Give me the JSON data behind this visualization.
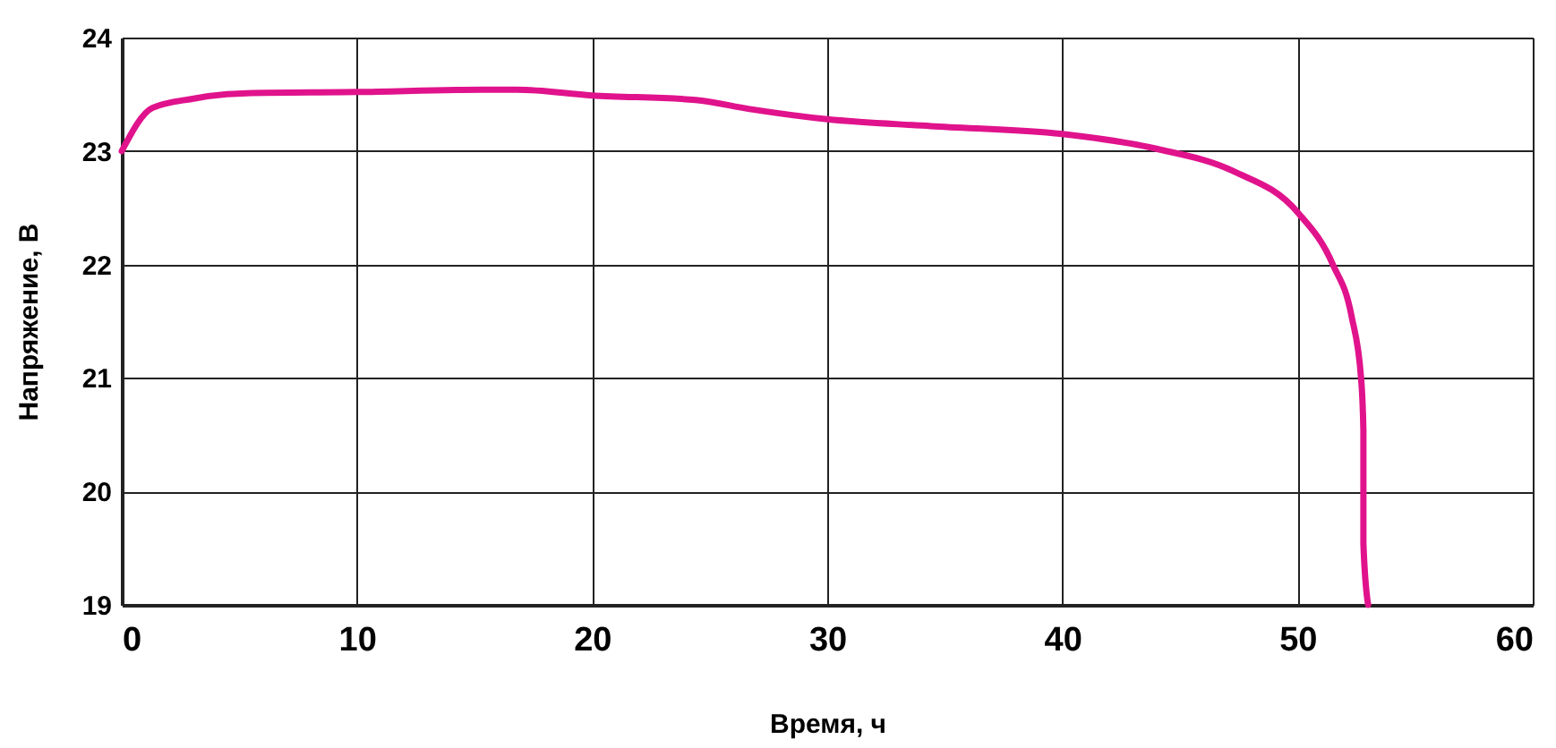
{
  "chart_data": {
    "type": "line",
    "xlabel": "Время, ч",
    "ylabel": "Напряжение, В",
    "xlim": [
      0,
      60
    ],
    "xticks": [
      0,
      10,
      20,
      30,
      40,
      50,
      60
    ],
    "ylim": [
      19,
      24
    ],
    "yticks": [
      19,
      20,
      21,
      22,
      23,
      24
    ],
    "grid": true,
    "line_style": "solid",
    "marker": "none",
    "series": [
      {
        "color": "#e0138c",
        "x": [
          0,
          1.3,
          3,
          5.3,
          10,
          15.3,
          16.8,
          20,
          24.4,
          26.7,
          30,
          34.4,
          40,
          44,
          47.3,
          50,
          51.5,
          52.3,
          52.7,
          52.8,
          52.8,
          52.8,
          53.0
        ],
        "values": [
          23.0,
          23.38,
          23.46,
          23.51,
          23.52,
          23.54,
          23.54,
          23.49,
          23.45,
          23.37,
          23.28,
          23.22,
          23.15,
          23.02,
          22.82,
          22.46,
          22.0,
          21.54,
          21.0,
          20.54,
          20.0,
          19.54,
          19.0
        ]
      }
    ]
  }
}
